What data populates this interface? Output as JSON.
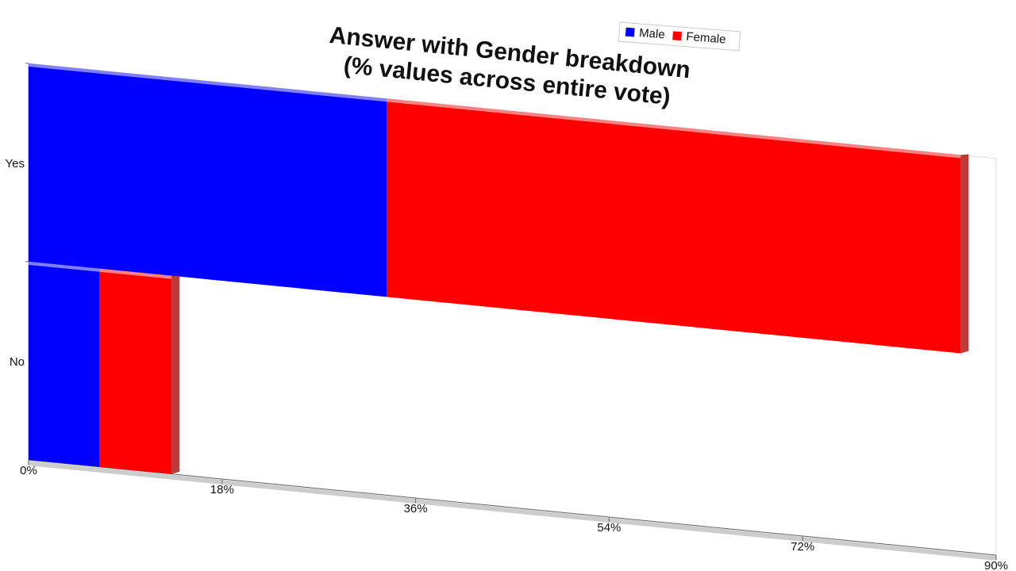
{
  "chart_data": {
    "type": "bar",
    "orientation": "horizontal",
    "stacked": true,
    "title": "Answer with Gender breakdown",
    "subtitle": "(% values across entire vote)",
    "categories": [
      "Yes",
      "No"
    ],
    "series": [
      {
        "name": "Male",
        "color": "#0000ff",
        "values": [
          33.3,
          6.6
        ]
      },
      {
        "name": "Female",
        "color": "#ff0000",
        "values": [
          53.4,
          6.7
        ]
      }
    ],
    "xlim": [
      0,
      90
    ],
    "xticks": [
      {
        "value": 0,
        "label": "0%"
      },
      {
        "value": 18,
        "label": "18%"
      },
      {
        "value": 36,
        "label": "36%"
      },
      {
        "value": 54,
        "label": "54%"
      },
      {
        "value": 72,
        "label": "72%"
      },
      {
        "value": 90,
        "label": "90%"
      }
    ],
    "legend": "top"
  }
}
